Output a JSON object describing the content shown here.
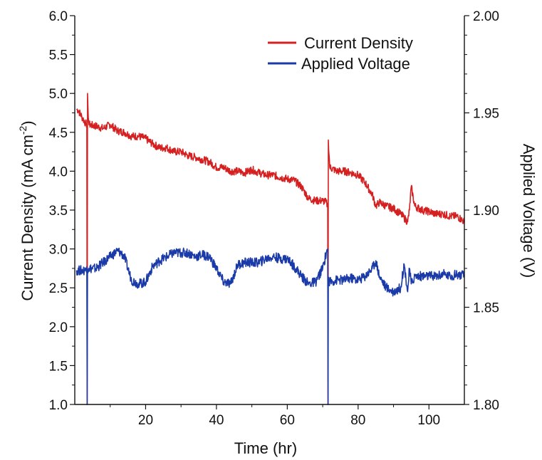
{
  "chart_data": {
    "type": "line",
    "title": "",
    "xlabel": "Time (hr)",
    "ylabel_left": "Current Density (mA cm",
    "ylabel_left_sup": "-2",
    "ylabel_left_end": ")",
    "ylabel_right": "Applied Voltage (V)",
    "xlim": [
      0,
      110
    ],
    "ylim_left": [
      1.0,
      6.0
    ],
    "ylim_right": [
      1.8,
      2.0
    ],
    "x_ticks": [
      20,
      40,
      60,
      80,
      100
    ],
    "x_tick_labels": [
      "20",
      "40",
      "60",
      "80",
      "100"
    ],
    "y_left_ticks": [
      1.0,
      1.5,
      2.0,
      2.5,
      3.0,
      3.5,
      4.0,
      4.5,
      5.0,
      5.5,
      6.0
    ],
    "y_left_tick_labels": [
      "1.0",
      "1.5",
      "2.0",
      "2.5",
      "3.0",
      "3.5",
      "4.0",
      "4.5",
      "5.0",
      "5.5",
      "6.0"
    ],
    "y_right_ticks": [
      1.8,
      1.85,
      1.9,
      1.95,
      2.0
    ],
    "y_right_tick_labels": [
      "1.80",
      "1.85",
      "1.90",
      "1.95",
      "2.00"
    ],
    "legend_position": "top-right",
    "series": [
      {
        "name": "Current Density",
        "axis": "left",
        "color": "#d42020",
        "x": [
          0.5,
          1,
          2,
          3,
          3.4,
          3.5,
          3.6,
          3.8,
          4,
          6,
          8,
          10,
          12,
          14,
          16,
          18,
          20,
          22,
          24,
          26,
          28,
          30,
          32,
          34,
          36,
          38,
          40,
          42,
          44,
          46,
          48,
          50,
          52,
          54,
          56,
          58,
          60,
          62,
          64,
          66,
          68,
          70,
          71,
          71.4,
          71.5,
          71.6,
          72,
          74,
          76,
          78,
          80,
          82,
          84,
          85,
          86,
          88,
          90,
          92,
          93,
          94,
          94.5,
          95,
          96,
          98,
          100,
          102,
          104,
          106,
          108,
          110
        ],
        "y": [
          4.8,
          4.78,
          4.7,
          4.62,
          4.6,
          1.0,
          5.0,
          4.7,
          4.6,
          4.58,
          4.55,
          4.6,
          4.52,
          4.5,
          4.45,
          4.45,
          4.42,
          4.35,
          4.3,
          4.3,
          4.25,
          4.25,
          4.2,
          4.18,
          4.15,
          4.12,
          4.05,
          4.05,
          4.0,
          4.0,
          3.98,
          4.02,
          3.98,
          3.95,
          3.95,
          3.92,
          3.9,
          3.88,
          3.8,
          3.65,
          3.62,
          3.62,
          3.6,
          3.55,
          1.0,
          4.4,
          4.05,
          4.0,
          4.0,
          3.98,
          3.95,
          3.85,
          3.7,
          3.55,
          3.6,
          3.55,
          3.52,
          3.45,
          3.4,
          3.35,
          3.5,
          3.8,
          3.55,
          3.5,
          3.48,
          3.45,
          3.45,
          3.42,
          3.42,
          3.35
        ]
      },
      {
        "name": "Applied Voltage",
        "axis": "right",
        "color": "#1a3aa8",
        "x": [
          0.5,
          2,
          3,
          3.4,
          3.5,
          3.6,
          4,
          6,
          8,
          10,
          12,
          13,
          14,
          15,
          16,
          18,
          20,
          22,
          24,
          26,
          28,
          30,
          32,
          34,
          36,
          38,
          40,
          42,
          44,
          46,
          48,
          50,
          52,
          54,
          56,
          58,
          60,
          62,
          64,
          66,
          68,
          70,
          71,
          71.4,
          71.5,
          71.6,
          72,
          74,
          76,
          78,
          80,
          82,
          84,
          85,
          86,
          88,
          90,
          92,
          93,
          94,
          94.5,
          95,
          96,
          98,
          100,
          102,
          104,
          106,
          108,
          110
        ],
        "y": [
          1.869,
          1.869,
          1.869,
          1.871,
          1.8,
          1.87,
          1.87,
          1.87,
          1.873,
          1.876,
          1.879,
          1.878,
          1.876,
          1.87,
          1.864,
          1.862,
          1.863,
          1.871,
          1.874,
          1.876,
          1.878,
          1.878,
          1.878,
          1.876,
          1.877,
          1.876,
          1.87,
          1.863,
          1.862,
          1.872,
          1.873,
          1.873,
          1.873,
          1.875,
          1.876,
          1.875,
          1.875,
          1.871,
          1.866,
          1.862,
          1.863,
          1.87,
          1.878,
          1.88,
          1.8,
          1.865,
          1.863,
          1.864,
          1.864,
          1.865,
          1.864,
          1.866,
          1.87,
          1.874,
          1.866,
          1.86,
          1.858,
          1.86,
          1.872,
          1.858,
          1.87,
          1.862,
          1.866,
          1.866,
          1.866,
          1.866,
          1.867,
          1.866,
          1.867,
          1.866
        ]
      }
    ]
  }
}
